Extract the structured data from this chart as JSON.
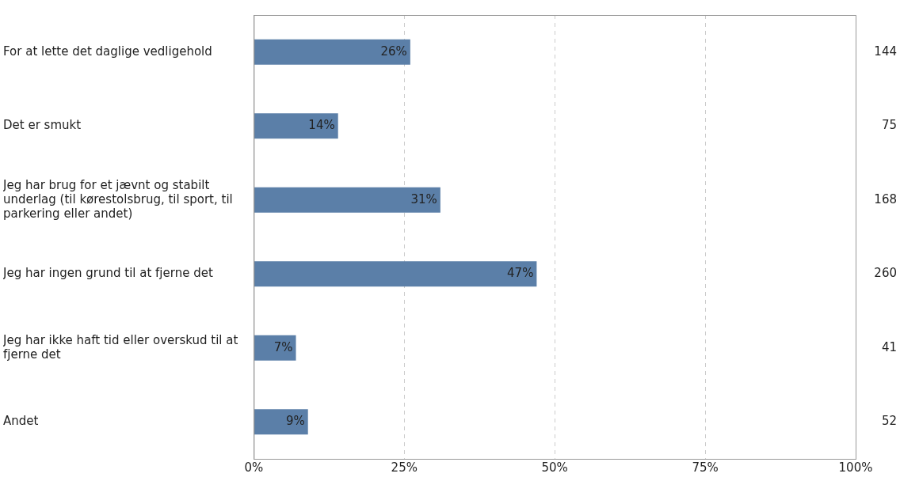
{
  "chart_data": {
    "type": "bar",
    "orientation": "horizontal",
    "categories": [
      "For at lette det daglige vedligehold",
      "Det er smukt",
      "Jeg har brug for et jævnt og stabilt underlag (til kørestolsbrug, til sport, til parkering eller andet)",
      "Jeg har ingen grund til at fjerne det",
      "Jeg har ikke haft tid eller overskud til at fjerne det",
      "Andet"
    ],
    "values": [
      26,
      14,
      31,
      47,
      7,
      9
    ],
    "value_labels": [
      "26%",
      "14%",
      "31%",
      "47%",
      "7%",
      "9%"
    ],
    "color": "#5b7fa8",
    "xlim": [
      0,
      100
    ],
    "xticks": [
      {
        "value": 0,
        "label": "0%"
      },
      {
        "value": 25,
        "label": "25%"
      },
      {
        "value": 50,
        "label": "50%"
      },
      {
        "value": 75,
        "label": "75%"
      },
      {
        "value": 100,
        "label": "100%"
      }
    ],
    "grid": "x",
    "legend": false,
    "annotations": [
      "144",
      "75",
      "168",
      "260",
      "41",
      "52"
    ]
  }
}
